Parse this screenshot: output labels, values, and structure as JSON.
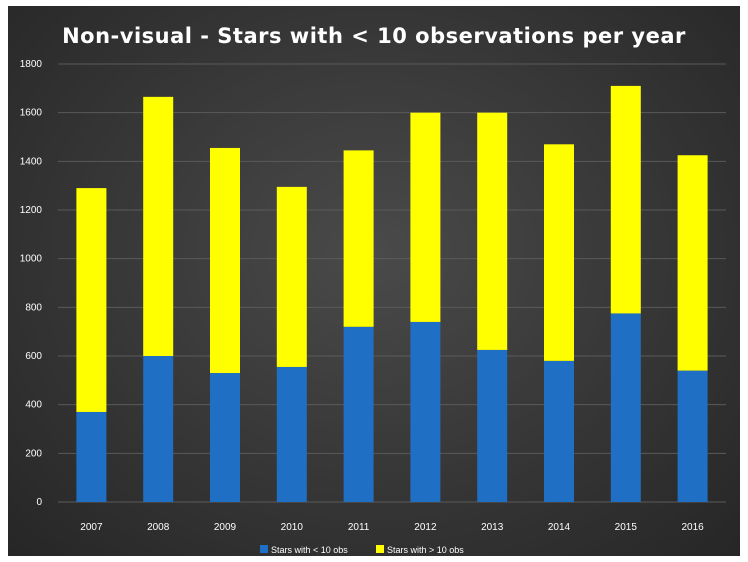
{
  "chart_data": {
    "type": "bar",
    "stacked": true,
    "title": "Non-visual - Stars with < 10 observations per year",
    "categories": [
      "2007",
      "2008",
      "2009",
      "2010",
      "2011",
      "2012",
      "2013",
      "2014",
      "2015",
      "2016"
    ],
    "series": [
      {
        "name": "Stars with < 10 obs",
        "color": "#1f6fc5",
        "values": [
          370,
          600,
          530,
          555,
          720,
          740,
          625,
          580,
          775,
          540
        ]
      },
      {
        "name": "Stars with > 10 obs",
        "color": "#ffff00",
        "values": [
          920,
          1065,
          925,
          740,
          725,
          860,
          975,
          890,
          935,
          885
        ]
      }
    ],
    "ylim": [
      0,
      1800
    ],
    "yticks": [
      "0",
      "200",
      "400",
      "600",
      "800",
      "1000",
      "1200",
      "1400",
      "1600",
      "1800"
    ],
    "grid": true,
    "legend_position": "bottom",
    "background_color": "#3a3a3a",
    "gridline_color": "#5a5a5a"
  }
}
